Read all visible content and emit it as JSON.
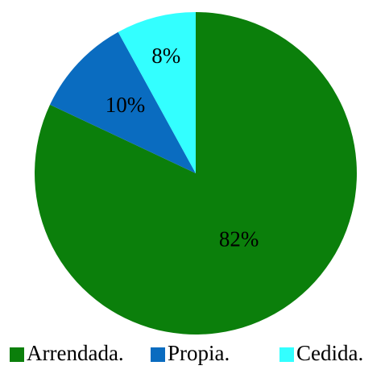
{
  "chart_data": {
    "type": "pie",
    "categories": [
      "Arrendada.",
      "Propia.",
      "Cedida."
    ],
    "values": [
      82,
      10,
      8
    ],
    "value_labels": [
      "82%",
      "10%",
      "8%"
    ],
    "colors": [
      "#0b7f0b",
      "#0a6cc0",
      "#33ffff"
    ]
  }
}
